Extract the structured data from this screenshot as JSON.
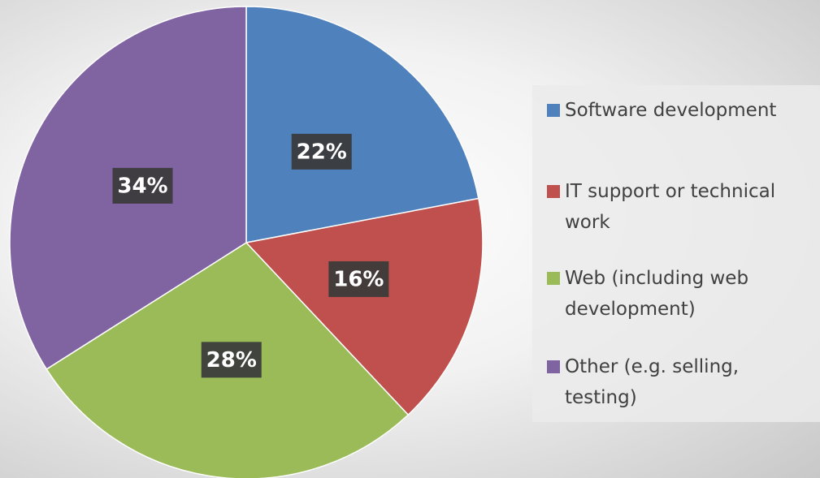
{
  "chart_data": {
    "type": "pie",
    "categories": [
      "Software development",
      "IT support or technical work",
      "Web (including web development)",
      "Other (e.g. selling, testing)"
    ],
    "values": [
      22,
      16,
      28,
      34
    ],
    "value_labels": [
      "22%",
      "16%",
      "28%",
      "34%"
    ],
    "colors": [
      "#4f81bd",
      "#c0504d",
      "#9bbb59",
      "#8064a2"
    ],
    "legend": "right"
  }
}
